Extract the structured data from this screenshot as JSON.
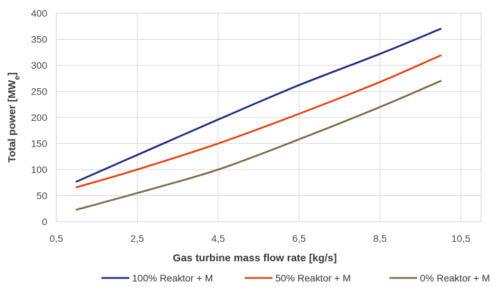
{
  "chart_data": {
    "type": "line",
    "title": "",
    "xlabel": "Gas turbine mass flow rate [kg/s]",
    "ylabel_main": "Total power",
    "ylabel_unit": "[MWe]",
    "ylabel_unit_base": "[MW",
    "ylabel_unit_sub": "e",
    "ylabel_unit_close": "]",
    "xlim": [
      0.5,
      11.0
    ],
    "ylim": [
      0,
      400
    ],
    "x_ticks": [
      0.5,
      2.5,
      4.5,
      6.5,
      8.5,
      10.5
    ],
    "x_tick_labels": [
      "0,5",
      "2,5",
      "4,5",
      "6,5",
      "8,5",
      "10,5"
    ],
    "y_ticks": [
      0,
      50,
      100,
      150,
      200,
      250,
      300,
      350,
      400
    ],
    "y_tick_labels": [
      "0",
      "50",
      "100",
      "150",
      "200",
      "250",
      "300",
      "350",
      "400"
    ],
    "grid": true,
    "legend_position": "bottom",
    "series": [
      {
        "name": "100% Reaktor + M",
        "color": "#1f2a80",
        "x": [
          1.0,
          2.5,
          4.5,
          6.5,
          8.5,
          10.0
        ],
        "y": [
          77,
          128,
          196,
          262,
          322,
          370
        ]
      },
      {
        "name": "50% Reaktor + M",
        "color": "#e8400c",
        "x": [
          1.0,
          2.5,
          4.5,
          6.5,
          8.5,
          10.0
        ],
        "y": [
          66,
          100,
          150,
          207,
          268,
          319
        ]
      },
      {
        "name": "0% Reaktor + M",
        "color": "#7f6a45",
        "x": [
          1.0,
          2.5,
          4.5,
          6.5,
          8.5,
          10.0
        ],
        "y": [
          23,
          55,
          100,
          158,
          220,
          270
        ]
      }
    ]
  }
}
